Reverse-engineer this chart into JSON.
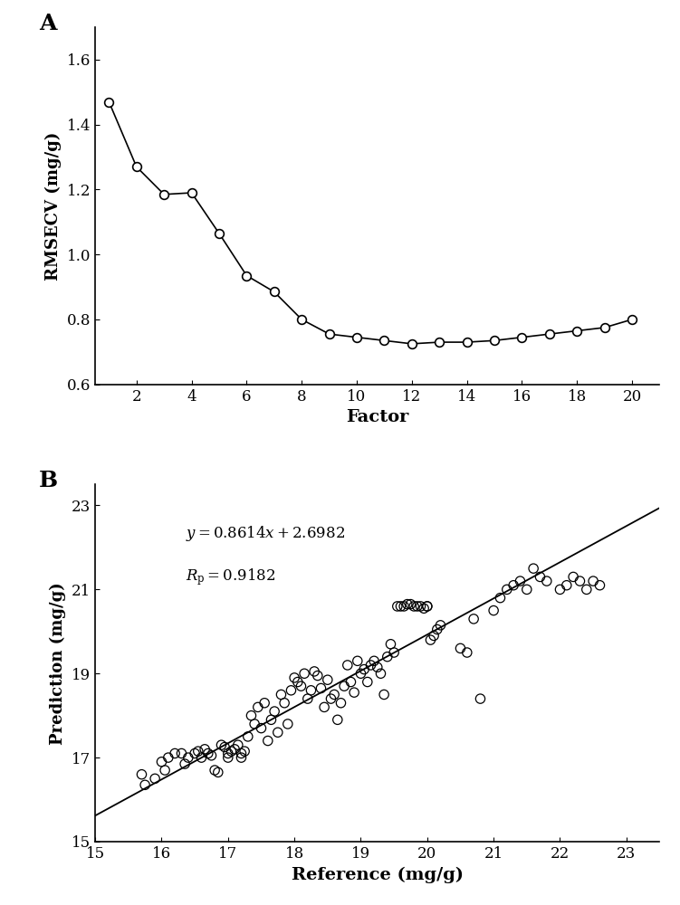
{
  "panel_A": {
    "label": "A",
    "x": [
      1,
      2,
      3,
      4,
      5,
      6,
      7,
      8,
      9,
      10,
      11,
      12,
      13,
      14,
      15,
      16,
      17,
      18,
      19,
      20
    ],
    "y": [
      1.47,
      1.27,
      1.185,
      1.19,
      1.065,
      0.935,
      0.885,
      0.8,
      0.755,
      0.745,
      0.735,
      0.725,
      0.73,
      0.73,
      0.735,
      0.745,
      0.755,
      0.765,
      0.775,
      0.8
    ],
    "xlabel": "Factor",
    "ylabel": "RMSECV (mg/g)",
    "ylim": [
      0.6,
      1.7
    ],
    "xlim": [
      0.5,
      21
    ],
    "yticks": [
      0.6,
      0.8,
      1.0,
      1.2,
      1.4,
      1.6
    ],
    "xticks": [
      2,
      4,
      6,
      8,
      10,
      12,
      14,
      16,
      18,
      20
    ]
  },
  "panel_B": {
    "label": "B",
    "slope": 0.8614,
    "intercept": 2.6982,
    "equation": "y = 0.8614x + 2.6982",
    "Rp_value": "0.9182",
    "xlabel": "Reference (mg/g)",
    "ylabel": "Prediction (mg/g)",
    "xlim": [
      15,
      23.5
    ],
    "ylim": [
      15,
      23.5
    ],
    "xticks": [
      15,
      16,
      17,
      18,
      19,
      20,
      21,
      22,
      23
    ],
    "yticks": [
      15,
      17,
      19,
      21,
      23
    ],
    "scatter_x": [
      15.7,
      15.75,
      15.9,
      16.0,
      16.05,
      16.1,
      16.2,
      16.3,
      16.35,
      16.4,
      16.5,
      16.55,
      16.6,
      16.65,
      16.7,
      16.75,
      16.8,
      16.85,
      16.9,
      16.95,
      17.0,
      17.0,
      17.05,
      17.1,
      17.15,
      17.2,
      17.2,
      17.25,
      17.3,
      17.35,
      17.4,
      17.45,
      17.5,
      17.55,
      17.6,
      17.65,
      17.7,
      17.75,
      17.8,
      17.85,
      17.9,
      17.95,
      18.0,
      18.05,
      18.1,
      18.15,
      18.2,
      18.25,
      18.3,
      18.35,
      18.4,
      18.45,
      18.5,
      18.55,
      18.6,
      18.65,
      18.7,
      18.75,
      18.8,
      18.85,
      18.9,
      18.95,
      19.0,
      19.05,
      19.1,
      19.15,
      19.2,
      19.25,
      19.3,
      19.35,
      19.4,
      19.45,
      19.5,
      19.55,
      19.6,
      19.65,
      19.7,
      19.75,
      19.8,
      19.85,
      19.9,
      19.95,
      20.0,
      20.0,
      20.05,
      20.1,
      20.15,
      20.2,
      20.5,
      20.6,
      20.7,
      20.8,
      21.0,
      21.1,
      21.2,
      21.3,
      21.4,
      21.5,
      21.6,
      21.7,
      21.8,
      22.0,
      22.1,
      22.2,
      22.3,
      22.4,
      22.5,
      22.6
    ],
    "scatter_y": [
      16.6,
      16.35,
      16.5,
      16.9,
      16.7,
      17.0,
      17.1,
      17.1,
      16.85,
      17.0,
      17.1,
      17.15,
      17.0,
      17.2,
      17.1,
      17.05,
      16.7,
      16.65,
      17.3,
      17.25,
      17.0,
      17.1,
      17.15,
      17.2,
      17.3,
      17.0,
      17.1,
      17.15,
      17.5,
      18.0,
      17.8,
      18.2,
      17.7,
      18.3,
      17.4,
      17.9,
      18.1,
      17.6,
      18.5,
      18.3,
      17.8,
      18.6,
      18.9,
      18.8,
      18.7,
      19.0,
      18.4,
      18.6,
      19.05,
      18.95,
      18.65,
      18.2,
      18.85,
      18.4,
      18.5,
      17.9,
      18.3,
      18.7,
      19.2,
      18.8,
      18.55,
      19.3,
      19.0,
      19.1,
      18.8,
      19.2,
      19.3,
      19.15,
      19.0,
      18.5,
      19.4,
      19.7,
      19.5,
      20.6,
      20.6,
      20.6,
      20.65,
      20.65,
      20.6,
      20.6,
      20.6,
      20.55,
      20.6,
      20.6,
      19.8,
      19.9,
      20.05,
      20.15,
      19.6,
      19.5,
      20.3,
      18.4,
      20.5,
      20.8,
      21.0,
      21.1,
      21.2,
      21.0,
      21.5,
      21.3,
      21.2,
      21.0,
      21.1,
      21.3,
      21.2,
      21.0,
      21.2,
      21.1
    ]
  }
}
